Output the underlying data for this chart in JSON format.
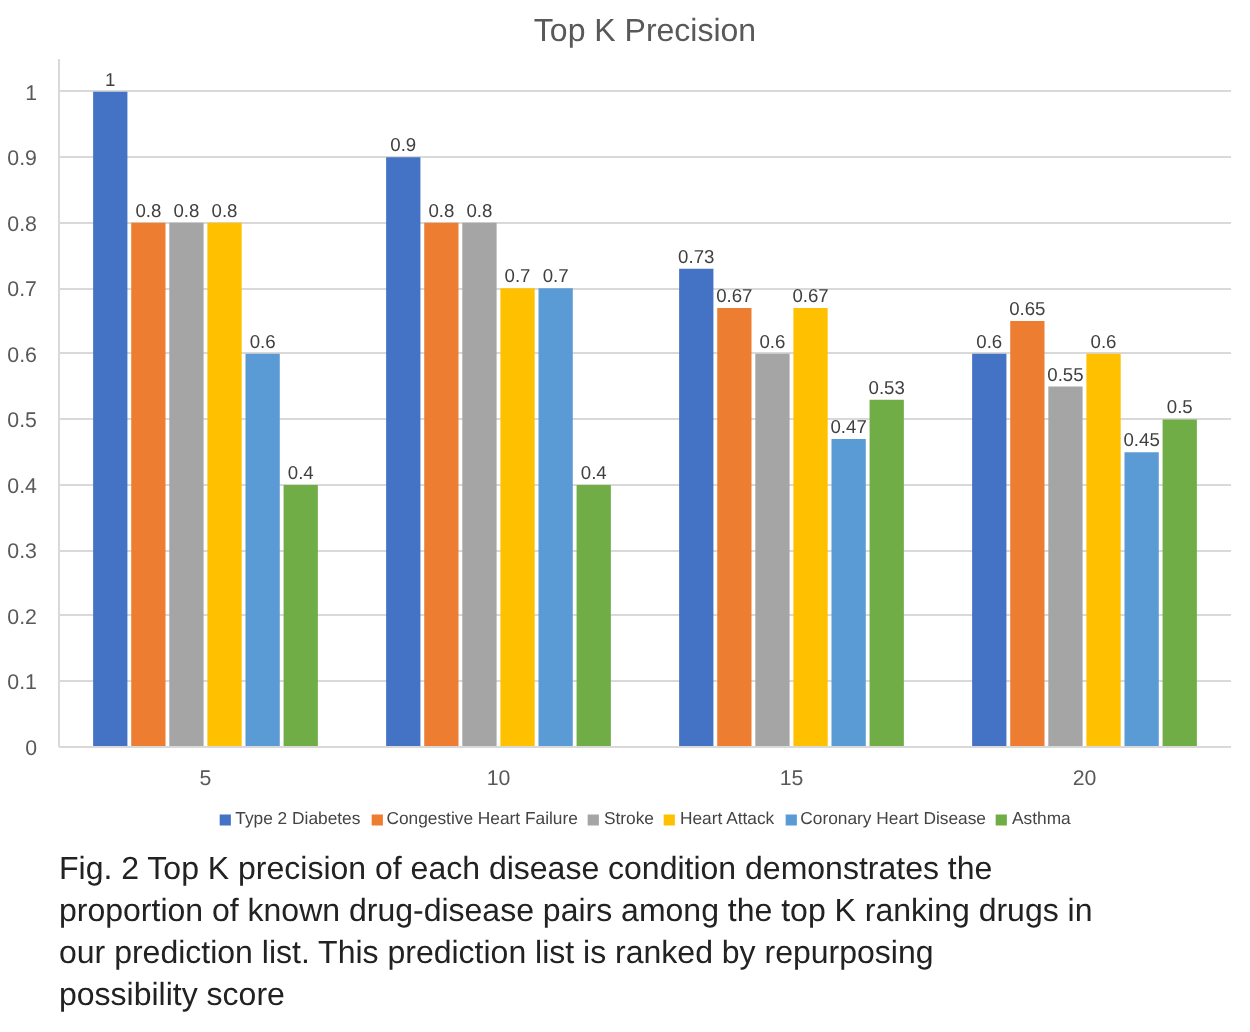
{
  "chart_data": {
    "type": "bar",
    "title": "Top K Precision",
    "categories": [
      "5",
      "10",
      "15",
      "20"
    ],
    "series": [
      {
        "name": "Type 2 Diabetes",
        "color": "#4472c4",
        "values": [
          1,
          0.9,
          0.73,
          0.6
        ]
      },
      {
        "name": "Congestive Heart Failure",
        "color": "#ed7d31",
        "values": [
          0.8,
          0.8,
          0.67,
          0.65
        ]
      },
      {
        "name": "Stroke",
        "color": "#a5a5a5",
        "values": [
          0.8,
          0.8,
          0.6,
          0.55
        ]
      },
      {
        "name": "Heart Attack",
        "color": "#ffc000",
        "values": [
          0.8,
          0.7,
          0.67,
          0.6
        ]
      },
      {
        "name": "Coronary Heart Disease",
        "color": "#5b9bd5",
        "values": [
          0.6,
          0.7,
          0.47,
          0.45
        ]
      },
      {
        "name": "Asthma",
        "color": "#70ad47",
        "values": [
          0.4,
          0.4,
          0.53,
          0.5
        ]
      }
    ],
    "ylim": [
      0,
      1.05
    ],
    "yticks": [
      0,
      0.1,
      0.2,
      0.3,
      0.4,
      0.5,
      0.6,
      0.7,
      0.8,
      0.9,
      1
    ],
    "grid": "y",
    "legend": "bottom",
    "data_labels": true,
    "annotations": [
      "Fig. 2 Top K precision of each disease condition demonstrates the proportion of known drug-disease pairs among the top K ranking drugs in our prediction list. This prediction list is ranked by repurposing possibility score"
    ]
  }
}
